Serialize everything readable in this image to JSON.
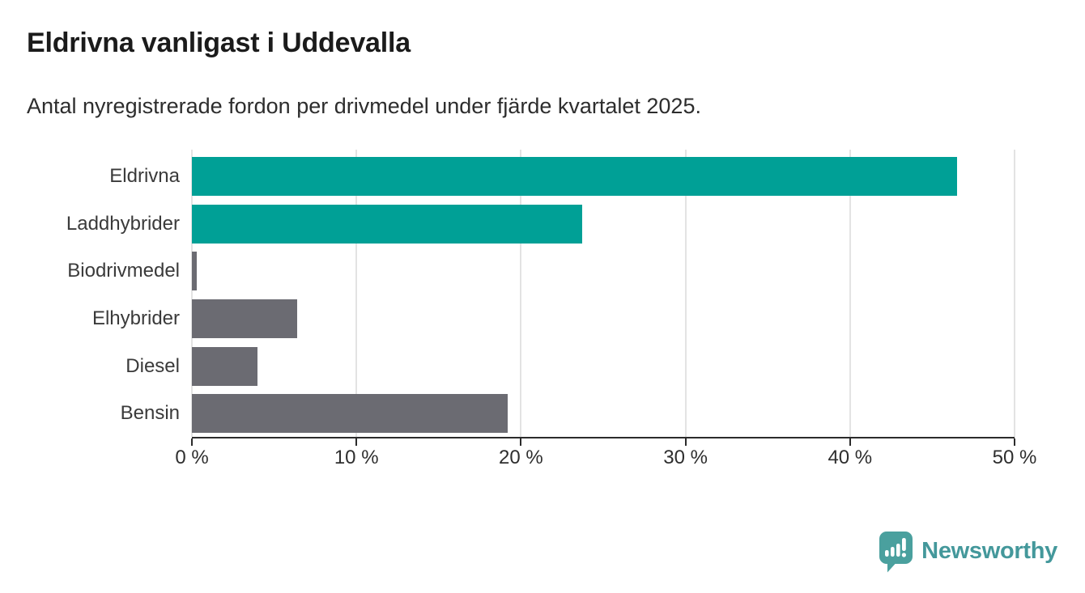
{
  "header": {
    "title": "Eldrivna vanligast i Uddevalla",
    "subtitle": "Antal nyregistrerade fordon per drivmedel under fjärde kvartalet 2025."
  },
  "chart_data": {
    "type": "bar",
    "orientation": "horizontal",
    "title": "Eldrivna vanligast i Uddevalla",
    "subtitle": "Antal nyregistrerade fordon per drivmedel under fjärde kvartalet 2025.",
    "categories": [
      "Eldrivna",
      "Laddhybrider",
      "Biodrivmedel",
      "Elhybrider",
      "Diesel",
      "Bensin"
    ],
    "values": [
      46.5,
      23.7,
      0.3,
      6.4,
      4.0,
      19.2
    ],
    "unit": "%",
    "xlim": [
      0,
      50
    ],
    "x_ticks": [
      "0 %",
      "10 %",
      "20 %",
      "30 %",
      "40 %",
      "50 %"
    ],
    "grid": "vertical",
    "bar_colors": [
      "#00a096",
      "#00a096",
      "#6b6b72",
      "#6b6b72",
      "#6b6b72",
      "#6b6b72"
    ],
    "highlight_color": "#00a096",
    "default_color": "#6b6b72",
    "axis_color": "#2b2b2b",
    "gridline_color": "#e3e3e3"
  },
  "branding": {
    "logo_text": "Newsworthy",
    "logo_color": "#44989b",
    "logo_icon": "speech-bubble-bar-chart-icon"
  }
}
